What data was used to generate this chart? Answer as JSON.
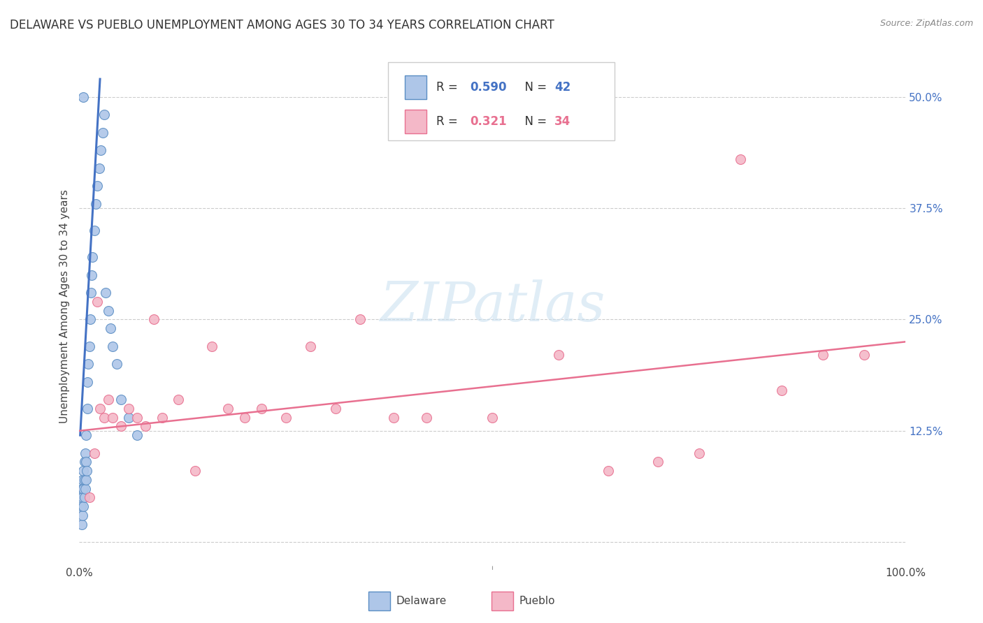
{
  "title": "DELAWARE VS PUEBLO UNEMPLOYMENT AMONG AGES 30 TO 34 YEARS CORRELATION CHART",
  "source": "Source: ZipAtlas.com",
  "ylabel": "Unemployment Among Ages 30 to 34 years",
  "xlim": [
    0,
    1.0
  ],
  "ylim": [
    -0.025,
    0.555
  ],
  "xtick_pos": [
    0.0,
    0.1,
    0.2,
    0.3,
    0.4,
    0.5,
    0.6,
    0.7,
    0.8,
    0.9,
    1.0
  ],
  "xticklabels": [
    "0.0%",
    "",
    "",
    "",
    "",
    "",
    "",
    "",
    "",
    "",
    "100.0%"
  ],
  "ytick_pos": [
    0.0,
    0.125,
    0.25,
    0.375,
    0.5
  ],
  "yticklabels_right": [
    "",
    "12.5%",
    "25.0%",
    "37.5%",
    "50.0%"
  ],
  "color_delaware_fill": "#aec6e8",
  "color_delaware_edge": "#5b8ec4",
  "color_delaware_line": "#4472c4",
  "color_pueblo_fill": "#f4b8c8",
  "color_pueblo_edge": "#e87090",
  "color_pueblo_line": "#e87090",
  "color_grid": "#cccccc",
  "color_ytick_right": "#4472c4",
  "marker_size": 100,
  "background_color": "#ffffff",
  "delaware_x": [
    0.002,
    0.003,
    0.003,
    0.004,
    0.004,
    0.004,
    0.005,
    0.005,
    0.005,
    0.006,
    0.006,
    0.006,
    0.007,
    0.007,
    0.008,
    0.008,
    0.008,
    0.009,
    0.01,
    0.01,
    0.011,
    0.012,
    0.013,
    0.014,
    0.015,
    0.016,
    0.018,
    0.02,
    0.022,
    0.024,
    0.026,
    0.028,
    0.03,
    0.032,
    0.035,
    0.038,
    0.04,
    0.045,
    0.05,
    0.06,
    0.07,
    0.005
  ],
  "delaware_y": [
    0.04,
    0.02,
    0.06,
    0.03,
    0.05,
    0.07,
    0.04,
    0.06,
    0.08,
    0.05,
    0.07,
    0.09,
    0.06,
    0.1,
    0.07,
    0.09,
    0.12,
    0.08,
    0.15,
    0.18,
    0.2,
    0.22,
    0.25,
    0.28,
    0.3,
    0.32,
    0.35,
    0.38,
    0.4,
    0.42,
    0.44,
    0.46,
    0.48,
    0.28,
    0.26,
    0.24,
    0.22,
    0.2,
    0.16,
    0.14,
    0.12,
    0.5
  ],
  "pueblo_x": [
    0.012,
    0.018,
    0.022,
    0.025,
    0.03,
    0.035,
    0.04,
    0.05,
    0.06,
    0.07,
    0.08,
    0.09,
    0.1,
    0.12,
    0.14,
    0.16,
    0.18,
    0.2,
    0.22,
    0.25,
    0.28,
    0.31,
    0.34,
    0.38,
    0.42,
    0.5,
    0.58,
    0.64,
    0.7,
    0.75,
    0.8,
    0.85,
    0.9,
    0.95
  ],
  "pueblo_y": [
    0.05,
    0.1,
    0.27,
    0.15,
    0.14,
    0.16,
    0.14,
    0.13,
    0.15,
    0.14,
    0.13,
    0.25,
    0.14,
    0.16,
    0.08,
    0.22,
    0.15,
    0.14,
    0.15,
    0.14,
    0.22,
    0.15,
    0.25,
    0.14,
    0.14,
    0.14,
    0.21,
    0.08,
    0.09,
    0.1,
    0.43,
    0.17,
    0.21,
    0.21
  ],
  "del_trend_x": [
    0.001,
    0.025
  ],
  "del_trend_y": [
    0.12,
    0.52
  ],
  "pub_trend_x": [
    0.0,
    1.0
  ],
  "pub_trend_y": [
    0.125,
    0.225
  ],
  "legend_r_del": "0.590",
  "legend_n_del": "42",
  "legend_r_pub": "0.321",
  "legend_n_pub": "34"
}
